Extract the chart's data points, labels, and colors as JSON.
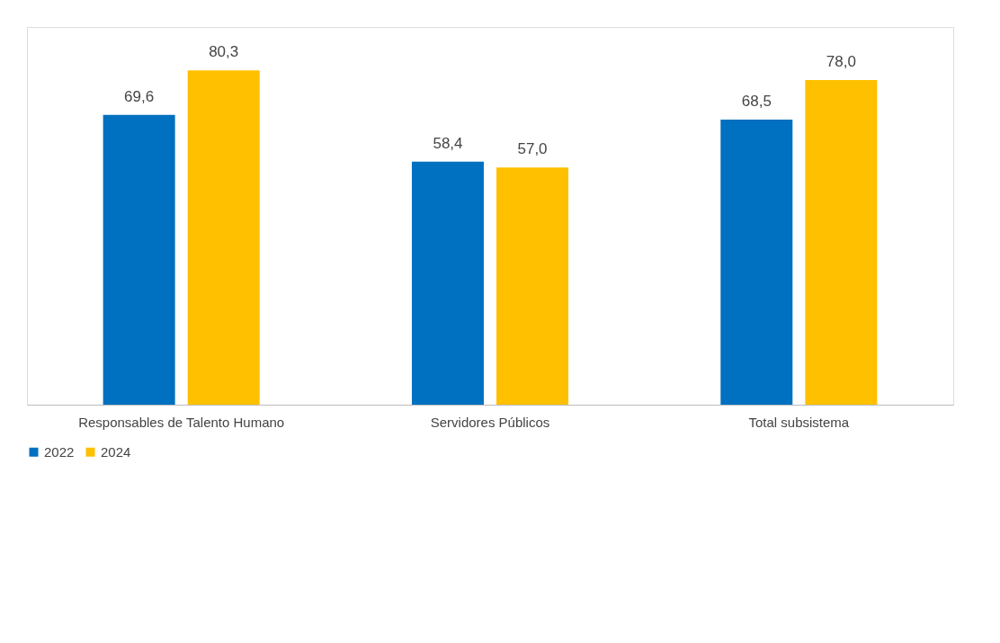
{
  "chart_data": {
    "type": "bar",
    "categories": [
      "Responsables de Talento Humano",
      "Servidores Públicos",
      "Total subsistema"
    ],
    "series": [
      {
        "name": "2022",
        "color": "#0070c0",
        "values": [
          69.6,
          58.4,
          68.5
        ],
        "value_labels": [
          "69,6",
          "58,4",
          "68,5"
        ]
      },
      {
        "name": "2024",
        "color": "#ffc000",
        "values": [
          80.3,
          57.0,
          78.0
        ],
        "value_labels": [
          "80,3",
          "57,0",
          "78,0"
        ]
      }
    ],
    "legend": "bottom",
    "grid": false
  }
}
